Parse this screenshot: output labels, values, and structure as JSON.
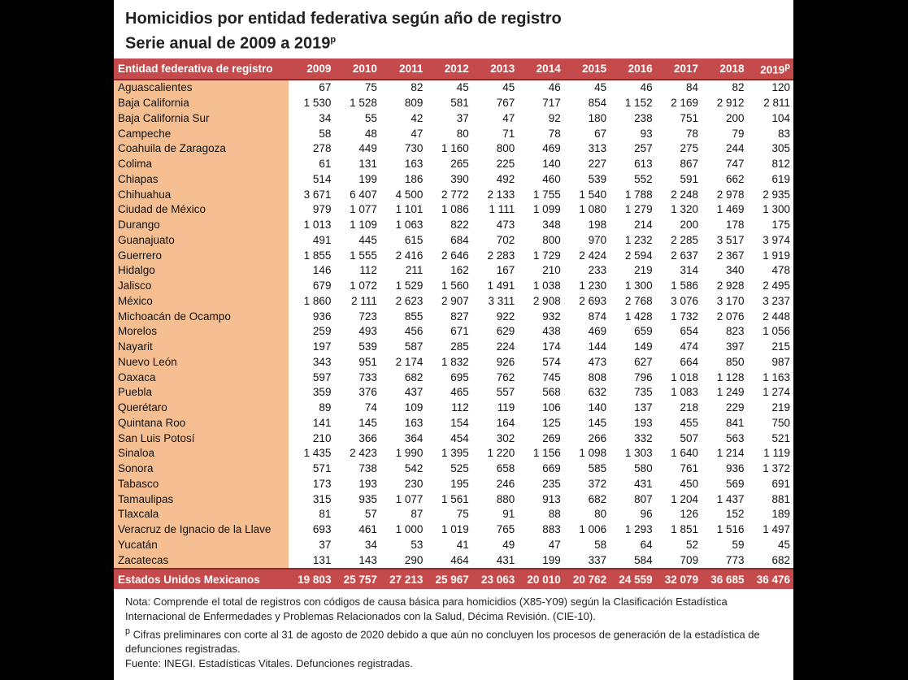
{
  "title": "Homicidios por entidad federativa según año de registro",
  "subtitle": "Serie anual de 2009 a 2019",
  "subtitle_sup": "p",
  "table": {
    "header": [
      "Entidad federativa de registro",
      "2009",
      "2010",
      "2011",
      "2012",
      "2013",
      "2014",
      "2015",
      "2016",
      "2017",
      "2018",
      "2019"
    ],
    "header_sup": "p",
    "rows": [
      [
        "Aguascalientes",
        "67",
        "75",
        "82",
        "45",
        "45",
        "46",
        "45",
        "46",
        "84",
        "82",
        "120"
      ],
      [
        "Baja California",
        "1 530",
        "1 528",
        "809",
        "581",
        "767",
        "717",
        "854",
        "1 152",
        "2 169",
        "2 912",
        "2 811"
      ],
      [
        "Baja California Sur",
        "34",
        "55",
        "42",
        "37",
        "47",
        "92",
        "180",
        "238",
        "751",
        "200",
        "104"
      ],
      [
        "Campeche",
        "58",
        "48",
        "47",
        "80",
        "71",
        "78",
        "67",
        "93",
        "78",
        "79",
        "83"
      ],
      [
        "Coahuila de Zaragoza",
        "278",
        "449",
        "730",
        "1 160",
        "800",
        "469",
        "313",
        "257",
        "275",
        "244",
        "305"
      ],
      [
        "Colima",
        "61",
        "131",
        "163",
        "265",
        "225",
        "140",
        "227",
        "613",
        "867",
        "747",
        "812"
      ],
      [
        "Chiapas",
        "514",
        "199",
        "186",
        "390",
        "492",
        "460",
        "539",
        "552",
        "591",
        "662",
        "619"
      ],
      [
        "Chihuahua",
        "3 671",
        "6 407",
        "4 500",
        "2 772",
        "2 133",
        "1 755",
        "1 540",
        "1 788",
        "2 248",
        "2 978",
        "2 935"
      ],
      [
        "Ciudad de México",
        "979",
        "1 077",
        "1 101",
        "1 086",
        "1 111",
        "1 099",
        "1 080",
        "1 279",
        "1 320",
        "1 469",
        "1 300"
      ],
      [
        "Durango",
        "1 013",
        "1 109",
        "1 063",
        "822",
        "473",
        "348",
        "198",
        "214",
        "200",
        "178",
        "175"
      ],
      [
        "Guanajuato",
        "491",
        "445",
        "615",
        "684",
        "702",
        "800",
        "970",
        "1 232",
        "2 285",
        "3 517",
        "3 974"
      ],
      [
        "Guerrero",
        "1 855",
        "1 555",
        "2 416",
        "2 646",
        "2 283",
        "1 729",
        "2 424",
        "2 594",
        "2 637",
        "2 367",
        "1 919"
      ],
      [
        "Hidalgo",
        "146",
        "112",
        "211",
        "162",
        "167",
        "210",
        "233",
        "219",
        "314",
        "340",
        "478"
      ],
      [
        "Jalisco",
        "679",
        "1 072",
        "1 529",
        "1 560",
        "1 491",
        "1 038",
        "1 230",
        "1 300",
        "1 586",
        "2 928",
        "2 495"
      ],
      [
        "México",
        "1 860",
        "2 111",
        "2 623",
        "2 907",
        "3 311",
        "2 908",
        "2 693",
        "2 768",
        "3 076",
        "3 170",
        "3 237"
      ],
      [
        "Michoacán de Ocampo",
        "936",
        "723",
        "855",
        "827",
        "922",
        "932",
        "874",
        "1 428",
        "1 732",
        "2 076",
        "2 448"
      ],
      [
        "Morelos",
        "259",
        "493",
        "456",
        "671",
        "629",
        "438",
        "469",
        "659",
        "654",
        "823",
        "1 056"
      ],
      [
        "Nayarit",
        "197",
        "539",
        "587",
        "285",
        "224",
        "174",
        "144",
        "149",
        "474",
        "397",
        "215"
      ],
      [
        "Nuevo León",
        "343",
        "951",
        "2 174",
        "1 832",
        "926",
        "574",
        "473",
        "627",
        "664",
        "850",
        "987"
      ],
      [
        "Oaxaca",
        "597",
        "733",
        "682",
        "695",
        "762",
        "745",
        "808",
        "796",
        "1 018",
        "1 128",
        "1 163"
      ],
      [
        "Puebla",
        "359",
        "376",
        "437",
        "465",
        "557",
        "568",
        "632",
        "735",
        "1 083",
        "1 249",
        "1 274"
      ],
      [
        "Querétaro",
        "89",
        "74",
        "109",
        "112",
        "119",
        "106",
        "140",
        "137",
        "218",
        "229",
        "219"
      ],
      [
        "Quintana Roo",
        "141",
        "145",
        "163",
        "154",
        "164",
        "125",
        "145",
        "193",
        "455",
        "841",
        "750"
      ],
      [
        "San Luis Potosí",
        "210",
        "366",
        "364",
        "454",
        "302",
        "269",
        "266",
        "332",
        "507",
        "563",
        "521"
      ],
      [
        "Sinaloa",
        "1 435",
        "2 423",
        "1 990",
        "1 395",
        "1 220",
        "1 156",
        "1 098",
        "1 303",
        "1 640",
        "1 214",
        "1 119"
      ],
      [
        "Sonora",
        "571",
        "738",
        "542",
        "525",
        "658",
        "669",
        "585",
        "580",
        "761",
        "936",
        "1 372"
      ],
      [
        "Tabasco",
        "173",
        "193",
        "230",
        "195",
        "246",
        "235",
        "372",
        "431",
        "450",
        "569",
        "691"
      ],
      [
        "Tamaulipas",
        "315",
        "935",
        "1 077",
        "1 561",
        "880",
        "913",
        "682",
        "807",
        "1 204",
        "1 437",
        "881"
      ],
      [
        "Tlaxcala",
        "81",
        "57",
        "87",
        "75",
        "91",
        "88",
        "80",
        "96",
        "126",
        "152",
        "189"
      ],
      [
        "Veracruz de Ignacio de la Llave",
        "693",
        "461",
        "1 000",
        "1 019",
        "765",
        "883",
        "1 006",
        "1 293",
        "1 851",
        "1 516",
        "1 497"
      ],
      [
        "Yucatán",
        "37",
        "34",
        "53",
        "41",
        "49",
        "47",
        "58",
        "64",
        "52",
        "59",
        "45"
      ],
      [
        "Zacatecas",
        "131",
        "143",
        "290",
        "464",
        "431",
        "199",
        "337",
        "584",
        "709",
        "773",
        "682"
      ]
    ],
    "total": [
      "Estados Unidos Mexicanos",
      "19 803",
      "25 757",
      "27 213",
      "25 967",
      "23 063",
      "20 010",
      "20 762",
      "24 559",
      "32 079",
      "36 685",
      "36 476"
    ]
  },
  "notes": {
    "nota": "Nota: Comprende el total de registros con códigos de causa básica para homicidios (X85-Y09) según la Clasificación Estadística Internacional de Enfermedades y Problemas Relacionados con la Salud, Décima Revisión. (CIE-10).",
    "preliminary_mark": "p",
    "preliminary": " Cifras preliminares con corte al 31 de agosto de 2020 debido a que aún no concluyen los procesos de generación de la estadística de defunciones registradas.",
    "source": "Fuente: INEGI. Estadísticas Vitales. Defunciones registradas."
  }
}
